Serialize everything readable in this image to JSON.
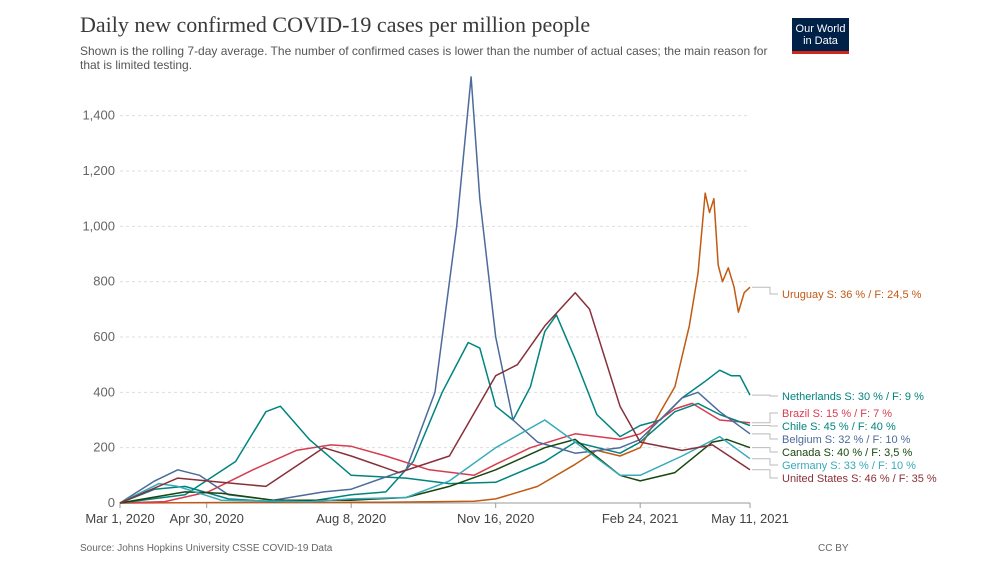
{
  "header": {
    "title": "Daily new confirmed COVID-19 cases per million people",
    "subtitle": "Shown is the rolling 7-day average. The number of confirmed cases is lower than the number of actual cases; the main reason for that is limited testing.",
    "logo_line1": "Our World",
    "logo_line2": "in Data"
  },
  "footer": {
    "source": "Source: Johns Hopkins University CSSE COVID-19 Data",
    "license": "CC BY"
  },
  "chart_data": {
    "type": "line",
    "title": "Daily new confirmed COVID-19 cases per million people",
    "subtitle": "Shown is the rolling 7-day average. The number of confirmed cases is lower than the number of actual cases; the main reason for that is limited testing.",
    "xlabel": "",
    "ylabel": "",
    "x_range": [
      "2020-03-01",
      "2021-05-11"
    ],
    "ylim": [
      0,
      1500
    ],
    "y_ticks": [
      0,
      200,
      400,
      600,
      800,
      1000,
      1200,
      1400
    ],
    "y_tick_labels": [
      "0",
      "200",
      "400",
      "600",
      "800",
      "1,000",
      "1,200",
      "1,400"
    ],
    "x_ticks": [
      "2020-03-01",
      "2020-04-30",
      "2020-08-08",
      "2020-11-16",
      "2021-02-24",
      "2021-05-11"
    ],
    "x_tick_labels": [
      "Mar 1, 2020",
      "Apr 30, 2020",
      "Aug 8, 2020",
      "Nov 16, 2020",
      "Feb 24, 2021",
      "May 11, 2021"
    ],
    "grid": "horizontal dashed",
    "legend": "right, end labels",
    "series": [
      {
        "name": "Uruguay",
        "annotation": "S: 36 % / F: 24,5 %",
        "color": "#c15a14",
        "points": [
          [
            "2020-03-01",
            0
          ],
          [
            "2020-06-01",
            2
          ],
          [
            "2020-09-01",
            3
          ],
          [
            "2020-11-01",
            6
          ],
          [
            "2020-11-16",
            15
          ],
          [
            "2020-12-15",
            60
          ],
          [
            "2021-01-10",
            140
          ],
          [
            "2021-01-25",
            190
          ],
          [
            "2021-02-10",
            170
          ],
          [
            "2021-02-24",
            200
          ],
          [
            "2021-03-10",
            330
          ],
          [
            "2021-03-20",
            420
          ],
          [
            "2021-03-30",
            640
          ],
          [
            "2021-04-05",
            830
          ],
          [
            "2021-04-10",
            1120
          ],
          [
            "2021-04-13",
            1050
          ],
          [
            "2021-04-16",
            1100
          ],
          [
            "2021-04-19",
            860
          ],
          [
            "2021-04-22",
            800
          ],
          [
            "2021-04-26",
            850
          ],
          [
            "2021-04-30",
            780
          ],
          [
            "2021-05-03",
            690
          ],
          [
            "2021-05-07",
            760
          ],
          [
            "2021-05-11",
            780
          ]
        ]
      },
      {
        "name": "Netherlands",
        "annotation": "S: 30 % / F: 9 %",
        "color": "#00847e",
        "points": [
          [
            "2020-03-01",
            0
          ],
          [
            "2020-03-25",
            50
          ],
          [
            "2020-04-15",
            60
          ],
          [
            "2020-05-15",
            15
          ],
          [
            "2020-06-15",
            5
          ],
          [
            "2020-07-15",
            10
          ],
          [
            "2020-08-08",
            30
          ],
          [
            "2020-09-01",
            40
          ],
          [
            "2020-09-20",
            150
          ],
          [
            "2020-10-10",
            400
          ],
          [
            "2020-10-28",
            580
          ],
          [
            "2020-11-05",
            560
          ],
          [
            "2020-11-16",
            350
          ],
          [
            "2020-11-28",
            300
          ],
          [
            "2020-12-10",
            420
          ],
          [
            "2020-12-20",
            620
          ],
          [
            "2020-12-28",
            680
          ],
          [
            "2021-01-10",
            520
          ],
          [
            "2021-01-25,",
            320
          ],
          [
            "2021-02-10",
            240
          ],
          [
            "2021-02-24",
            280
          ],
          [
            "2021-03-10",
            300
          ],
          [
            "2021-03-25",
            380
          ],
          [
            "2021-04-10",
            440
          ],
          [
            "2021-04-20",
            480
          ],
          [
            "2021-04-28",
            460
          ],
          [
            "2021-05-04",
            460
          ],
          [
            "2021-05-11",
            390
          ]
        ]
      },
      {
        "name": "Brazil",
        "annotation": "S: 15 % / F: 7 %",
        "color": "#d73c50",
        "points": [
          [
            "2020-03-01",
            0
          ],
          [
            "2020-04-01",
            5
          ],
          [
            "2020-05-01",
            40
          ],
          [
            "2020-06-01",
            120
          ],
          [
            "2020-07-01",
            190
          ],
          [
            "2020-07-25",
            210
          ],
          [
            "2020-08-08",
            205
          ],
          [
            "2020-09-01",
            170
          ],
          [
            "2020-10-01",
            120
          ],
          [
            "2020-11-01",
            100
          ],
          [
            "2020-11-16",
            140
          ],
          [
            "2020-12-10",
            200
          ],
          [
            "2021-01-10",
            250
          ],
          [
            "2021-02-10",
            230
          ],
          [
            "2021-02-24",
            250
          ],
          [
            "2021-03-20",
            340
          ],
          [
            "2021-04-01",
            360
          ],
          [
            "2021-04-20",
            300
          ],
          [
            "2021-05-11",
            290
          ]
        ]
      },
      {
        "name": "Chile",
        "annotation": "S: 45 % / F: 40 %",
        "color": "#00847e",
        "points": [
          [
            "2020-03-01",
            0
          ],
          [
            "2020-04-15",
            30
          ],
          [
            "2020-05-20",
            150
          ],
          [
            "2020-06-10",
            330
          ],
          [
            "2020-06-20",
            350
          ],
          [
            "2020-07-10",
            230
          ],
          [
            "2020-08-08",
            100
          ],
          [
            "2020-09-15",
            90
          ],
          [
            "2020-10-15",
            70
          ],
          [
            "2020-11-16",
            75
          ],
          [
            "2020-12-20",
            150
          ],
          [
            "2021-01-10",
            220
          ],
          [
            "2021-02-10",
            180
          ],
          [
            "2021-02-24",
            220
          ],
          [
            "2021-03-20",
            330
          ],
          [
            "2021-04-05",
            360
          ],
          [
            "2021-04-20",
            320
          ],
          [
            "2021-05-11",
            280
          ]
        ]
      },
      {
        "name": "Belgium",
        "annotation": "S: 32 % / F: 10 %",
        "color": "#4c6a9c",
        "points": [
          [
            "2020-03-01",
            0
          ],
          [
            "2020-03-25",
            80
          ],
          [
            "2020-04-10",
            120
          ],
          [
            "2020-04-25",
            100
          ],
          [
            "2020-05-15",
            30
          ],
          [
            "2020-06-15",
            10
          ],
          [
            "2020-07-20",
            40
          ],
          [
            "2020-08-08",
            50
          ],
          [
            "2020-09-15",
            120
          ],
          [
            "2020-10-05",
            400
          ],
          [
            "2020-10-20",
            1000
          ],
          [
            "2020-10-30",
            1540
          ],
          [
            "2020-11-05",
            1100
          ],
          [
            "2020-11-16",
            600
          ],
          [
            "2020-11-28",
            300
          ],
          [
            "2020-12-15",
            220
          ],
          [
            "2021-01-10",
            180
          ],
          [
            "2021-02-10",
            200
          ],
          [
            "2021-02-24",
            230
          ],
          [
            "2021-03-25",
            380
          ],
          [
            "2021-04-05",
            400
          ],
          [
            "2021-04-20",
            330
          ],
          [
            "2021-05-11",
            250
          ]
        ]
      },
      {
        "name": "Canada",
        "annotation": "S: 40 % / F: 3,5 %",
        "color": "#18470f",
        "points": [
          [
            "2020-03-01",
            0
          ],
          [
            "2020-04-15",
            40
          ],
          [
            "2020-05-10",
            35
          ],
          [
            "2020-06-15",
            10
          ],
          [
            "2020-08-08",
            10
          ],
          [
            "2020-09-15",
            20
          ],
          [
            "2020-10-15",
            60
          ],
          [
            "2020-11-16",
            120
          ],
          [
            "2020-12-20",
            200
          ],
          [
            "2021-01-10",
            230
          ],
          [
            "2021-02-10",
            100
          ],
          [
            "2021-02-24",
            80
          ],
          [
            "2021-03-20",
            110
          ],
          [
            "2021-04-15",
            220
          ],
          [
            "2021-04-25",
            230
          ],
          [
            "2021-05-11",
            200
          ]
        ]
      },
      {
        "name": "Germany",
        "annotation": "S: 33 % / F: 10 %",
        "color": "#38aaba",
        "points": [
          [
            "2020-03-01",
            0
          ],
          [
            "2020-03-28",
            70
          ],
          [
            "2020-04-10",
            60
          ],
          [
            "2020-05-10",
            10
          ],
          [
            "2020-07-10",
            5
          ],
          [
            "2020-08-08",
            15
          ],
          [
            "2020-09-15",
            20
          ],
          [
            "2020-10-15",
            80
          ],
          [
            "2020-11-16",
            200
          ],
          [
            "2020-12-20",
            300
          ],
          [
            "2021-01-10",
            220
          ],
          [
            "2021-02-10",
            100
          ],
          [
            "2021-02-24",
            100
          ],
          [
            "2021-03-25",
            170
          ],
          [
            "2021-04-20",
            240
          ],
          [
            "2021-05-11",
            160
          ]
        ]
      },
      {
        "name": "United States",
        "annotation": "S: 46 % / F: 35 %",
        "color": "#883039",
        "points": [
          [
            "2020-03-01",
            0
          ],
          [
            "2020-04-10",
            90
          ],
          [
            "2020-05-10",
            75
          ],
          [
            "2020-06-10",
            60
          ],
          [
            "2020-07-20",
            200
          ],
          [
            "2020-08-08",
            170
          ],
          [
            "2020-09-10",
            110
          ],
          [
            "2020-10-15",
            170
          ],
          [
            "2020-11-16",
            460
          ],
          [
            "2020-12-01",
            500
          ],
          [
            "2020-12-20",
            640
          ],
          [
            "2021-01-10",
            760
          ],
          [
            "2021-01-20",
            700
          ],
          [
            "2021-02-10",
            350
          ],
          [
            "2021-02-24",
            220
          ],
          [
            "2021-03-25",
            190
          ],
          [
            "2021-04-15",
            210
          ],
          [
            "2021-05-11",
            120
          ]
        ]
      }
    ]
  }
}
